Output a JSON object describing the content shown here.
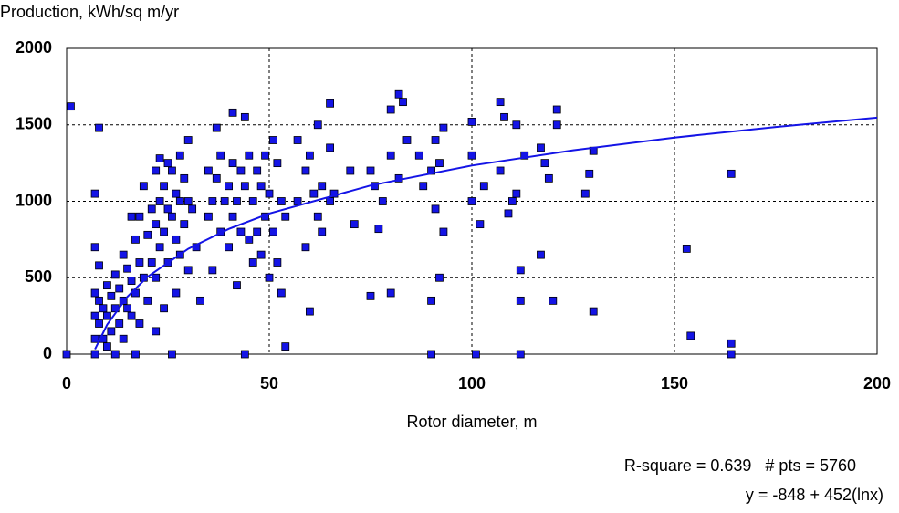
{
  "chart_data": {
    "type": "scatter",
    "title": "Production, kWh/sq m/yr",
    "x_label": "Rotor diameter, m",
    "annotations": [
      "R-square = 0.639   # pts = 5760",
      "y = -848 + 452(lnx)"
    ],
    "xlim": [
      0,
      200
    ],
    "xticks": [
      0,
      50,
      100,
      150,
      200
    ],
    "ylim": [
      0,
      2000
    ],
    "yticks": [
      0,
      500,
      1000,
      1500,
      2000
    ],
    "grid": true,
    "color": "#1414e6",
    "x": [
      1,
      0,
      7,
      8,
      7,
      7,
      7,
      7,
      7,
      8,
      8,
      8,
      9,
      9,
      10,
      10,
      10,
      11,
      11,
      12,
      12,
      12,
      13,
      13,
      14,
      14,
      14,
      15,
      15,
      16,
      16,
      16,
      17,
      17,
      17,
      18,
      18,
      18,
      19,
      19,
      20,
      20,
      21,
      21,
      22,
      22,
      22,
      22,
      23,
      23,
      23,
      24,
      24,
      24,
      25,
      25,
      25,
      26,
      26,
      26,
      27,
      27,
      27,
      28,
      28,
      28,
      29,
      29,
      30,
      30,
      30,
      31,
      32,
      33,
      35,
      35,
      36,
      36,
      37,
      37,
      38,
      38,
      39,
      40,
      40,
      41,
      41,
      41,
      42,
      42,
      43,
      43,
      44,
      44,
      44,
      45,
      45,
      46,
      46,
      47,
      47,
      48,
      48,
      49,
      49,
      50,
      50,
      51,
      51,
      52,
      52,
      53,
      53,
      54,
      54,
      57,
      57,
      59,
      59,
      60,
      60,
      61,
      62,
      62,
      63,
      63,
      65,
      65,
      65,
      66,
      70,
      71,
      75,
      75,
      76,
      77,
      78,
      80,
      80,
      80,
      82,
      82,
      83,
      84,
      87,
      88,
      90,
      90,
      90,
      91,
      91,
      92,
      92,
      93,
      93,
      100,
      100,
      100,
      101,
      102,
      103,
      107,
      107,
      108,
      109,
      110,
      111,
      111,
      112,
      112,
      112,
      113,
      117,
      117,
      118,
      119,
      120,
      121,
      121,
      128,
      129,
      130,
      130,
      153,
      154,
      164,
      164,
      164
    ],
    "values": [
      1620,
      0,
      1050,
      1480,
      700,
      400,
      250,
      100,
      0,
      580,
      350,
      200,
      300,
      100,
      450,
      250,
      50,
      380,
      150,
      520,
      300,
      0,
      430,
      200,
      650,
      350,
      100,
      560,
      300,
      900,
      480,
      250,
      750,
      400,
      0,
      900,
      600,
      200,
      1100,
      500,
      780,
      350,
      950,
      600,
      1200,
      850,
      500,
      150,
      1280,
      1000,
      700,
      1100,
      800,
      300,
      1250,
      950,
      600,
      1200,
      900,
      0,
      1050,
      750,
      400,
      1300,
      1000,
      650,
      1150,
      850,
      1400,
      1000,
      550,
      950,
      700,
      350,
      1200,
      900,
      1000,
      550,
      1480,
      1150,
      1300,
      800,
      1000,
      1100,
      700,
      1580,
      1250,
      900,
      1000,
      450,
      1200,
      800,
      1550,
      1100,
      0,
      1300,
      750,
      1000,
      600,
      1200,
      800,
      1100,
      650,
      1300,
      900,
      1050,
      500,
      1400,
      800,
      1250,
      600,
      1000,
      400,
      50,
      900,
      1400,
      1000,
      1200,
      700,
      280,
      1300,
      1050,
      1500,
      900,
      1100,
      800,
      1640,
      1350,
      1000,
      1050,
      1200,
      850,
      1200,
      380,
      1100,
      820,
      1000,
      1600,
      1300,
      400,
      1700,
      1150,
      1650,
      1400,
      1300,
      1100,
      1200,
      350,
      0,
      1400,
      950,
      1250,
      500,
      1480,
      800,
      1520,
      1300,
      1000,
      0,
      850,
      1100,
      1650,
      1200,
      1550,
      920,
      1000,
      1500,
      1050,
      550,
      350,
      0,
      1300,
      1350,
      650,
      1250,
      1150,
      350,
      1600,
      1500,
      1050,
      1180,
      1330,
      280,
      690,
      120,
      1180,
      70,
      0
    ],
    "fit": {
      "color": "#1414e6",
      "x": [
        7,
        10,
        15,
        20,
        30,
        40,
        50,
        75,
        100,
        125,
        150,
        175,
        200
      ],
      "values": [
        32,
        193,
        376,
        506,
        689,
        819,
        920,
        1103,
        1234,
        1334,
        1417,
        1486,
        1547
      ]
    }
  }
}
